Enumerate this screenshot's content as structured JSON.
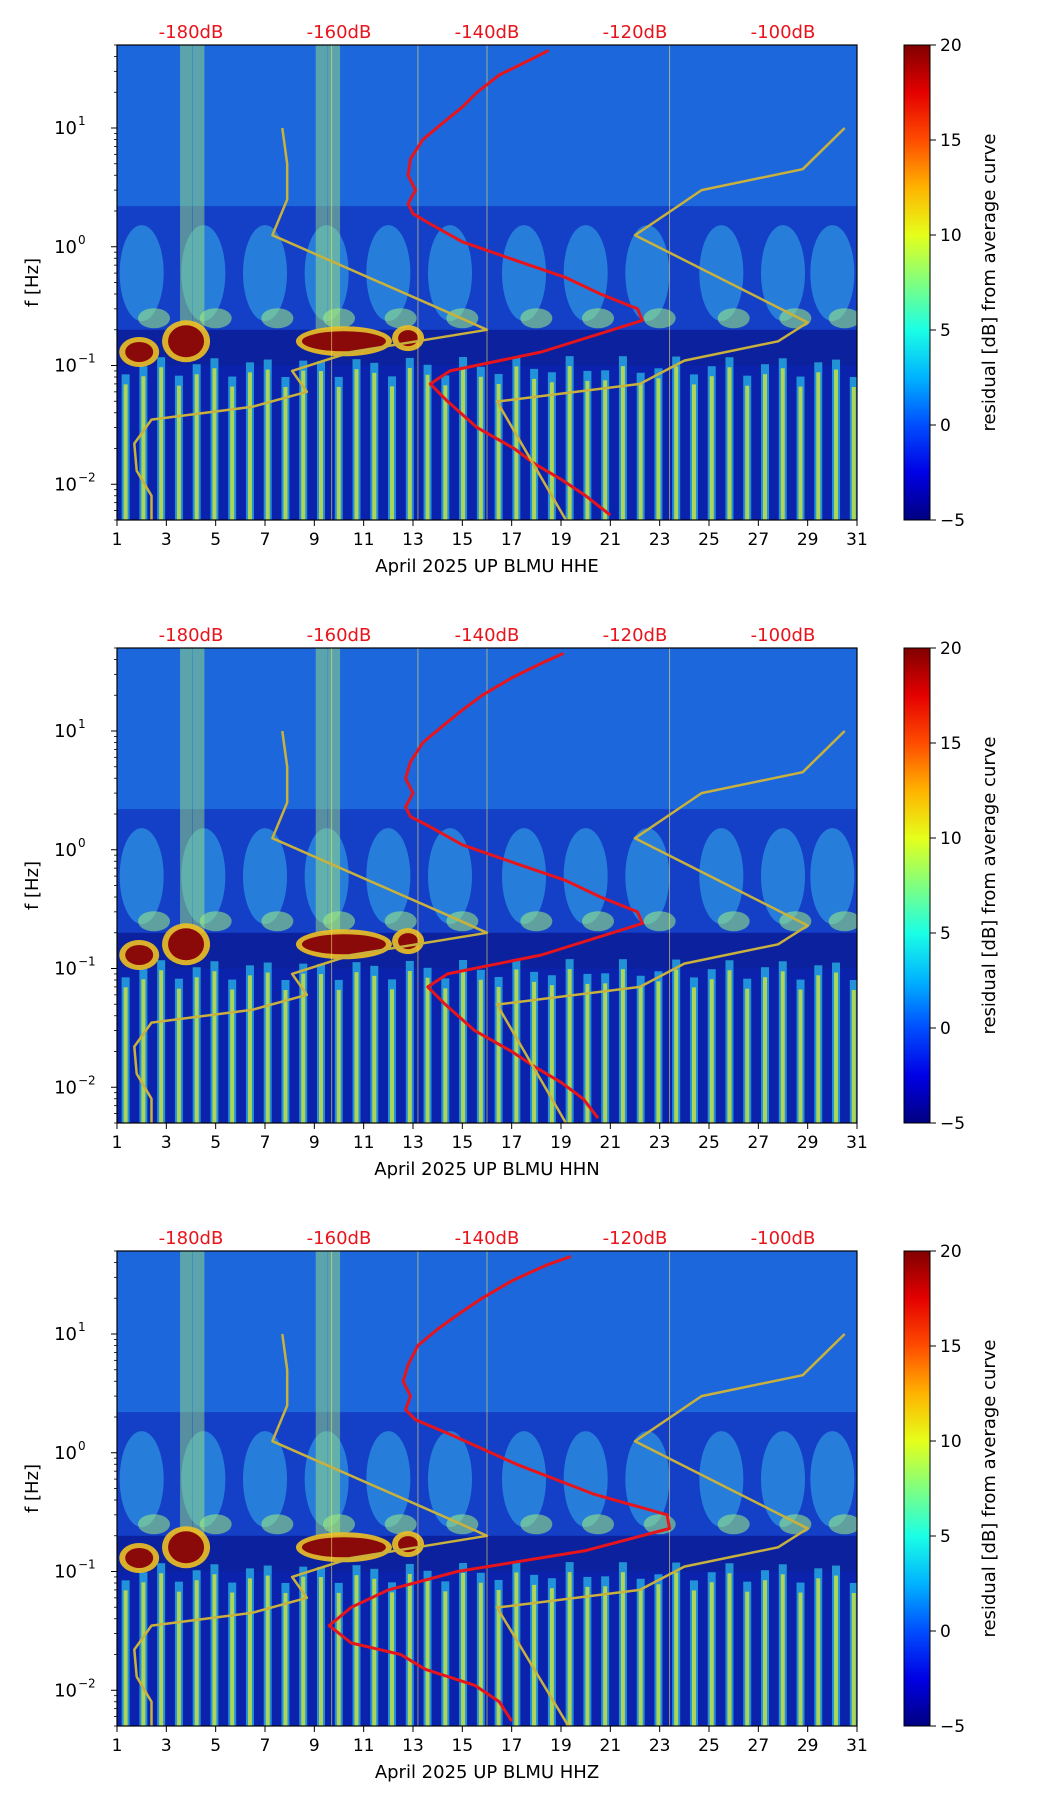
{
  "colors": {
    "db_scale": "#e8141c",
    "noise_model": "#c8b13c",
    "psd_curve": "#e8141c"
  },
  "chart_data": [
    {
      "type": "heatmap",
      "xlabel": "April 2025 UP BLMU  HHE",
      "ylabel": "f [Hz]",
      "colorbar_label": "residual [dB] from average curve",
      "colorbar_range": [
        -5,
        20
      ],
      "colorbar_ticks": [
        "20",
        "15",
        "10",
        "5",
        "0",
        "−5"
      ],
      "colorbar_tick_values": [
        20,
        15,
        10,
        5,
        0,
        -5
      ],
      "colormap": "jet",
      "x_ticks": [
        "1",
        "3",
        "5",
        "7",
        "9",
        "11",
        "13",
        "15",
        "17",
        "19",
        "21",
        "23",
        "25",
        "27",
        "29",
        "31"
      ],
      "x_range": [
        1,
        31
      ],
      "y_scale": "log",
      "y_range": [
        0.005,
        50
      ],
      "y_ticks": [
        {
          "value": 10,
          "base": "10",
          "exp": "1"
        },
        {
          "value": 1,
          "base": "10",
          "exp": "0"
        },
        {
          "value": 0.1,
          "base": "10",
          "exp": "−1"
        },
        {
          "value": 0.01,
          "base": "10",
          "exp": "−2"
        }
      ],
      "top_db_labels": [
        "-180dB",
        "-160dB",
        "-140dB",
        "-120dB",
        "-100dB"
      ],
      "top_db_positions": [
        4,
        10,
        16,
        22,
        28
      ],
      "series": [
        {
          "color": "#e8141c",
          "x": [
            18.5,
            17.8,
            16.5,
            15.6,
            15.0,
            14.2,
            13.4,
            12.9,
            12.8,
            13.1,
            12.8,
            13.0,
            13.6,
            15.0,
            17.3,
            19.2,
            20.6,
            22.1,
            22.3,
            18.2,
            14.5,
            13.7,
            14.4,
            15.6,
            17.1,
            17.9,
            19.0,
            20.0,
            21.0
          ],
          "y": [
            45,
            38,
            28,
            20,
            15,
            11,
            8,
            5.5,
            4,
            3,
            2.3,
            1.9,
            1.6,
            1.1,
            0.75,
            0.55,
            0.4,
            0.3,
            0.24,
            0.13,
            0.09,
            0.07,
            0.05,
            0.03,
            0.02,
            0.015,
            0.011,
            0.008,
            0.0055
          ]
        },
        {
          "color": "#c8b13c",
          "x": [
            2.4,
            2.4,
            1.8,
            1.7,
            2.4,
            6.5,
            8.7,
            8.1,
            10.5,
            16.0,
            14.6,
            7.3,
            7.9,
            7.9,
            7.7
          ],
          "y": [
            0.005,
            0.008,
            0.013,
            0.022,
            0.035,
            0.045,
            0.06,
            0.09,
            0.13,
            0.2,
            0.27,
            1.25,
            2.5,
            5,
            10
          ]
        },
        {
          "color": "#c8b13c",
          "x": [
            19.2,
            16.4,
            16.5,
            22.2,
            24.0,
            27.8,
            29.0,
            22.0,
            24.7,
            28.8,
            30.5
          ],
          "y": [
            0.005,
            0.05,
            0.05,
            0.07,
            0.11,
            0.16,
            0.23,
            1.25,
            3.0,
            4.5,
            10
          ]
        }
      ]
    },
    {
      "type": "heatmap",
      "xlabel": "April 2025 UP BLMU  HHN",
      "ylabel": "f [Hz]",
      "colorbar_label": "residual [dB] from average curve",
      "colorbar_range": [
        -5,
        20
      ],
      "colorbar_ticks": [
        "20",
        "15",
        "10",
        "5",
        "0",
        "−5"
      ],
      "colorbar_tick_values": [
        20,
        15,
        10,
        5,
        0,
        -5
      ],
      "colormap": "jet",
      "x_ticks": [
        "1",
        "3",
        "5",
        "7",
        "9",
        "11",
        "13",
        "15",
        "17",
        "19",
        "21",
        "23",
        "25",
        "27",
        "29",
        "31"
      ],
      "x_range": [
        1,
        31
      ],
      "y_scale": "log",
      "y_range": [
        0.005,
        50
      ],
      "y_ticks": [
        {
          "value": 10,
          "base": "10",
          "exp": "1"
        },
        {
          "value": 1,
          "base": "10",
          "exp": "0"
        },
        {
          "value": 0.1,
          "base": "10",
          "exp": "−1"
        },
        {
          "value": 0.01,
          "base": "10",
          "exp": "−2"
        }
      ],
      "top_db_labels": [
        "-180dB",
        "-160dB",
        "-140dB",
        "-120dB",
        "-100dB"
      ],
      "top_db_positions": [
        4,
        10,
        16,
        22,
        28
      ],
      "series": [
        {
          "color": "#e8141c",
          "x": [
            19.1,
            18.3,
            17.0,
            15.8,
            15.0,
            14.2,
            13.4,
            12.9,
            12.7,
            13.0,
            12.7,
            12.9,
            13.6,
            15.0,
            17.3,
            19.2,
            20.6,
            22.1,
            22.3,
            18.2,
            14.4,
            13.6,
            14.3,
            15.5,
            17.0,
            17.9,
            19.0,
            19.9,
            20.5
          ],
          "y": [
            45,
            38,
            28,
            20,
            15,
            11,
            8,
            5.5,
            4,
            3,
            2.3,
            1.9,
            1.6,
            1.1,
            0.75,
            0.55,
            0.4,
            0.3,
            0.24,
            0.13,
            0.09,
            0.07,
            0.05,
            0.03,
            0.02,
            0.015,
            0.011,
            0.008,
            0.0055
          ]
        },
        {
          "color": "#c8b13c",
          "x": [
            2.4,
            2.4,
            1.8,
            1.7,
            2.4,
            6.5,
            8.7,
            8.1,
            10.5,
            16.0,
            14.6,
            7.3,
            7.9,
            7.9,
            7.7
          ],
          "y": [
            0.005,
            0.008,
            0.013,
            0.022,
            0.035,
            0.045,
            0.06,
            0.09,
            0.13,
            0.2,
            0.27,
            1.25,
            2.5,
            5,
            10
          ]
        },
        {
          "color": "#c8b13c",
          "x": [
            19.2,
            16.4,
            16.5,
            22.2,
            24.0,
            27.8,
            29.0,
            22.0,
            24.7,
            28.8,
            30.5
          ],
          "y": [
            0.005,
            0.05,
            0.05,
            0.07,
            0.11,
            0.16,
            0.23,
            1.25,
            3.0,
            4.5,
            10
          ]
        }
      ]
    },
    {
      "type": "heatmap",
      "xlabel": "April 2025 UP BLMU  HHZ",
      "ylabel": "f [Hz]",
      "colorbar_label": "residual [dB] from average curve",
      "colorbar_range": [
        -5,
        20
      ],
      "colorbar_ticks": [
        "20",
        "15",
        "10",
        "5",
        "0",
        "−5"
      ],
      "colorbar_tick_values": [
        20,
        15,
        10,
        5,
        0,
        -5
      ],
      "colormap": "jet",
      "x_ticks": [
        "1",
        "3",
        "5",
        "7",
        "9",
        "11",
        "13",
        "15",
        "17",
        "19",
        "21",
        "23",
        "25",
        "27",
        "29",
        "31"
      ],
      "x_range": [
        1,
        31
      ],
      "y_scale": "log",
      "y_range": [
        0.005,
        50
      ],
      "y_ticks": [
        {
          "value": 10,
          "base": "10",
          "exp": "1"
        },
        {
          "value": 1,
          "base": "10",
          "exp": "0"
        },
        {
          "value": 0.1,
          "base": "10",
          "exp": "−1"
        },
        {
          "value": 0.01,
          "base": "10",
          "exp": "−2"
        }
      ],
      "top_db_labels": [
        "-180dB",
        "-160dB",
        "-140dB",
        "-120dB",
        "-100dB"
      ],
      "top_db_positions": [
        4,
        10,
        16,
        22,
        28
      ],
      "series": [
        {
          "color": "#e8141c",
          "x": [
            19.4,
            18.4,
            17.0,
            15.8,
            14.9,
            14.0,
            13.2,
            12.8,
            12.6,
            12.9,
            12.7,
            13.1,
            14.6,
            17.2,
            20.3,
            23.3,
            23.4,
            20.0,
            14.8,
            12.0,
            10.5,
            9.6,
            10.5,
            12.5,
            13.5,
            15.5,
            16.5,
            17.0
          ],
          "y": [
            45,
            38,
            28,
            20,
            15,
            11,
            8,
            5.5,
            4,
            3,
            2.3,
            1.9,
            1.4,
            0.8,
            0.45,
            0.3,
            0.23,
            0.15,
            0.1,
            0.07,
            0.05,
            0.035,
            0.025,
            0.02,
            0.015,
            0.011,
            0.008,
            0.0055
          ]
        },
        {
          "color": "#c8b13c",
          "x": [
            2.4,
            2.4,
            1.8,
            1.7,
            2.4,
            6.5,
            8.7,
            8.1,
            10.5,
            16.0,
            14.6,
            7.3,
            7.9,
            7.9,
            7.7
          ],
          "y": [
            0.005,
            0.008,
            0.013,
            0.022,
            0.035,
            0.045,
            0.06,
            0.09,
            0.13,
            0.2,
            0.27,
            1.25,
            2.5,
            5,
            10
          ]
        },
        {
          "color": "#c8b13c",
          "x": [
            19.3,
            16.4,
            16.5,
            22.2,
            24.0,
            27.8,
            29.0,
            22.0,
            24.7,
            28.8,
            30.5
          ],
          "y": [
            0.005,
            0.05,
            0.05,
            0.07,
            0.11,
            0.16,
            0.23,
            1.25,
            3.0,
            4.5,
            10
          ]
        }
      ]
    }
  ]
}
